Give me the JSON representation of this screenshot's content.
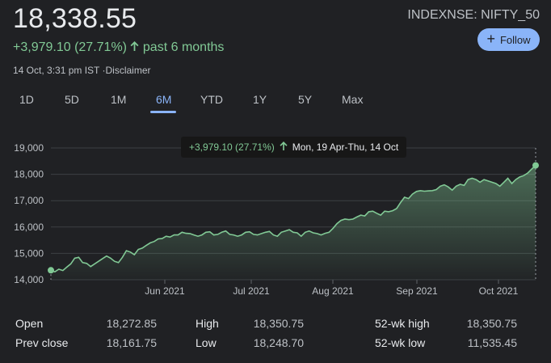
{
  "quote": {
    "price": "18,338.55",
    "ticker": "INDEXNSE: NIFTY_50",
    "change": "+3,979.10 (27.71%)",
    "period": "past 6 months",
    "timestamp": "14 Oct, 3:31 pm IST ·Disclaimer",
    "follow_label": "Follow"
  },
  "tabs": [
    {
      "label": "1D"
    },
    {
      "label": "5D"
    },
    {
      "label": "1M"
    },
    {
      "label": "6M",
      "active": true
    },
    {
      "label": "YTD"
    },
    {
      "label": "1Y"
    },
    {
      "label": "5Y"
    },
    {
      "label": "Max"
    }
  ],
  "tooltip": {
    "change": "+3,979.10 (27.71%)",
    "date_range": "Mon, 19 Apr-Thu, 14 Oct"
  },
  "colors": {
    "positive": "#81c995",
    "accent": "#8ab4f8",
    "background": "#202124"
  },
  "chart_data": {
    "type": "area",
    "ylim": [
      14000,
      19000
    ],
    "y_ticks": [
      "19,000",
      "18,000",
      "17,000",
      "16,000",
      "15,000",
      "14,000"
    ],
    "x_ticks": [
      "Jun 2021",
      "Jul 2021",
      "Aug 2021",
      "Sep 2021",
      "Oct 2021"
    ],
    "xlabel": "",
    "ylabel": "",
    "grid": true,
    "series": [
      {
        "values": [
          14359,
          14300,
          14400,
          14350,
          14480,
          14600,
          14820,
          14850,
          14650,
          14620,
          14500,
          14600,
          14700,
          14800,
          14900,
          14820,
          14700,
          14650,
          14850,
          15100,
          15050,
          14950,
          15150,
          15200,
          15300,
          15400,
          15450,
          15550,
          15560,
          15650,
          15620,
          15700,
          15700,
          15800,
          15760,
          15750,
          15700,
          15650,
          15700,
          15800,
          15820,
          15700,
          15720,
          15800,
          15850,
          15720,
          15700,
          15650,
          15700,
          15800,
          15820,
          15720,
          15700,
          15750,
          15800,
          15830,
          15700,
          15650,
          15800,
          15850,
          15900,
          15800,
          15780,
          15650,
          15800,
          15850,
          15780,
          15750,
          15700,
          15760,
          15800,
          15950,
          16130,
          16250,
          16300,
          16280,
          16300,
          16380,
          16450,
          16420,
          16580,
          16600,
          16520,
          16450,
          16600,
          16580,
          16620,
          16700,
          16930,
          17130,
          17080,
          17250,
          17350,
          17380,
          17360,
          17370,
          17380,
          17420,
          17550,
          17600,
          17520,
          17400,
          17550,
          17620,
          17580,
          17800,
          17850,
          17800,
          17700,
          17800,
          17750,
          17700,
          17650,
          17550,
          17700,
          17850,
          17650,
          17800,
          17900,
          17950,
          18050,
          18200,
          18338.55
        ]
      }
    ]
  },
  "stats": [
    {
      "label": "Open",
      "value": "18,272.85"
    },
    {
      "label": "High",
      "value": "18,350.75"
    },
    {
      "label": "52-wk high",
      "value": "18,350.75"
    },
    {
      "label": "Prev close",
      "value": "18,161.75"
    },
    {
      "label": "Low",
      "value": "18,248.70"
    },
    {
      "label": "52-wk low",
      "value": "11,535.45"
    }
  ]
}
